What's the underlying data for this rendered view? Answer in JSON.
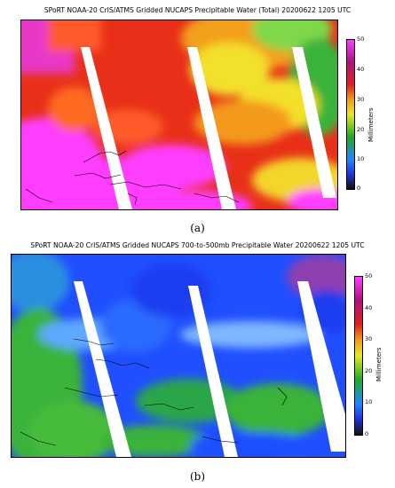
{
  "panels": [
    {
      "title": "SPoRT NOAA-20 CrIS/ATMS Gridded NUCAPS Precipitable Water (Total) 20200622 1205 UTC",
      "colorbar": {
        "label": "Millimeters",
        "ticks": [
          "50",
          "40",
          "30",
          "20",
          "10",
          "0"
        ],
        "min": 0,
        "max": 50
      },
      "caption": "(a)",
      "theme": "total"
    },
    {
      "title": "SPoRT NOAA-20 CrIS/ATMS Gridded NUCAPS 700-to-500mb Precipitable Water 20200622 1205 UTC",
      "colorbar": {
        "label": "Millimeters",
        "ticks": [
          "50",
          "40",
          "30",
          "20",
          "10",
          "0"
        ],
        "min": 0,
        "max": 50
      },
      "caption": "(b)",
      "theme": "layer"
    }
  ],
  "colors": {
    "magenta": "#ff3cff",
    "red": "#e83018",
    "orange": "#f39a1c",
    "yellow": "#f3e02a",
    "green": "#3bb33b",
    "blue": "#1f4fff",
    "lightblue": "#5fa8ff",
    "purple": "#8f3fb0",
    "swath_gap": "#ffffff"
  }
}
